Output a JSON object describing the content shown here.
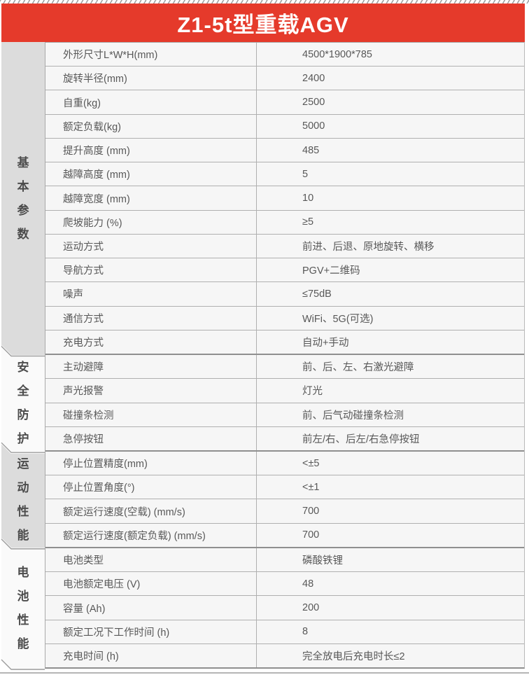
{
  "header": {
    "title": "Z1-5t型重载AGV"
  },
  "colors": {
    "accent_red": "#e53a2b",
    "sidebar_gray": "#dcdcdc",
    "sidebar_light": "#fafafa",
    "row_background": "#f6f6f6",
    "grid_line": "#a9a9a9",
    "text": "#585858"
  },
  "sections": [
    {
      "label": "基本参数",
      "rows": [
        {
          "label": "外形尺寸L*W*H(mm)",
          "value": "4500*1900*785"
        },
        {
          "label": "旋转半径(mm)",
          "value": "2400"
        },
        {
          "label": "自重(kg)",
          "value": "2500"
        },
        {
          "label": "额定负载(kg)",
          "value": "5000"
        },
        {
          "label": "提升高度 (mm)",
          "value": "485"
        },
        {
          "label": "越障高度 (mm)",
          "value": "5"
        },
        {
          "label": "越障宽度 (mm)",
          "value": "10"
        },
        {
          "label": "爬坡能力 (%)",
          "value": "≥5"
        },
        {
          "label": "运动方式",
          "value": "前进、后退、原地旋转、横移"
        },
        {
          "label": "导航方式",
          "value": "PGV+二维码"
        },
        {
          "label": "噪声",
          "value": "≤75dB"
        },
        {
          "label": "通信方式",
          "value": "WiFi、5G(可选)"
        },
        {
          "label": "充电方式",
          "value": "自动+手动"
        }
      ]
    },
    {
      "label": "安全防护",
      "rows": [
        {
          "label": "主动避障",
          "value": "前、后、左、右激光避障"
        },
        {
          "label": "声光报警",
          "value": "灯光"
        },
        {
          "label": "碰撞条检测",
          "value": "前、后气动碰撞条检测"
        },
        {
          "label": "急停按钮",
          "value": "前左/右、后左/右急停按钮"
        }
      ]
    },
    {
      "label": "运动性能",
      "rows": [
        {
          "label": "停止位置精度(mm)",
          "value": "<±5"
        },
        {
          "label": "停止位置角度(°)",
          "value": "<±1"
        },
        {
          "label": "额定运行速度(空载) (mm/s)",
          "value": "700"
        },
        {
          "label": "额定运行速度(额定负载) (mm/s)",
          "value": "700"
        }
      ]
    },
    {
      "label": "电池性能",
      "rows": [
        {
          "label": "电池类型",
          "value": "磷酸铁锂"
        },
        {
          "label": "电池额定电压 (V)",
          "value": "48"
        },
        {
          "label": "容量 (Ah)",
          "value": "200"
        },
        {
          "label": "额定工况下工作时间 (h)",
          "value": "8"
        },
        {
          "label": "充电时间 (h)",
          "value": "完全放电后充电时长≤2"
        }
      ]
    }
  ]
}
